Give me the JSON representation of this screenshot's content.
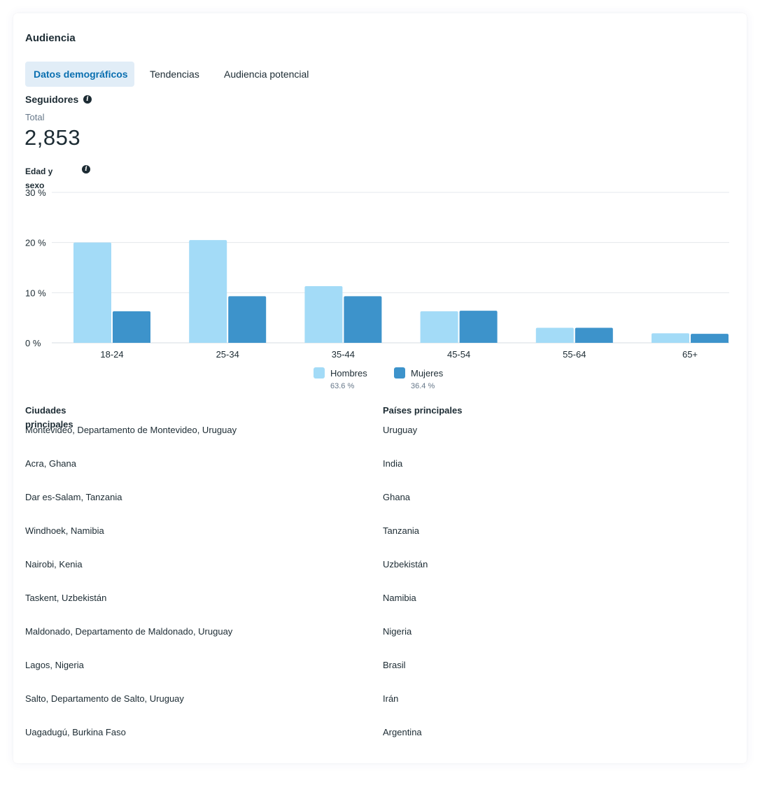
{
  "audience": {
    "title": "Audiencia",
    "tabs": [
      {
        "label": "Datos demográficos"
      },
      {
        "label": "Tendencias"
      },
      {
        "label": "Audiencia potencial"
      }
    ],
    "followers_label": "Seguidores",
    "total_label": "Total",
    "total_value": "2,853",
    "age_gender_label": "Edad y sexo"
  },
  "chart_data": {
    "type": "bar",
    "categories": [
      "18-24",
      "25-34",
      "35-44",
      "45-54",
      "55-64",
      "65+"
    ],
    "series": [
      {
        "name": "Hombres",
        "values": [
          20.0,
          20.5,
          11.3,
          6.3,
          3.0,
          1.9
        ],
        "color": "#a3dbf7"
      },
      {
        "name": "Mujeres",
        "values": [
          6.3,
          9.3,
          9.3,
          6.4,
          3.0,
          1.8
        ],
        "color": "#3d93cb"
      }
    ],
    "yticks": [
      "0 %",
      "10 %",
      "20 %",
      "30 %"
    ],
    "ylim": [
      0,
      30
    ],
    "legend": [
      {
        "name": "Hombres",
        "pct": "63.6 %"
      },
      {
        "name": "Mujeres",
        "pct": "36.4 %"
      }
    ],
    "legend_position": "bottom-center",
    "grid": true
  },
  "cities": {
    "heading": "Ciudades principales",
    "items": [
      "Montevideo, Departamento de Montevideo, Uruguay",
      "Acra, Ghana",
      "Dar es-Salam, Tanzania",
      "Windhoek, Namibia",
      "Nairobi, Kenia",
      "Taskent, Uzbekistán",
      "Maldonado, Departamento de Maldonado, Uruguay",
      "Lagos, Nigeria",
      "Salto, Departamento de Salto, Uruguay",
      "Uagadugú, Burkina Faso"
    ]
  },
  "countries": {
    "heading": "Países principales",
    "items": [
      "Uruguay",
      "India",
      "Ghana",
      "Tanzania",
      "Uzbekistán",
      "Namibia",
      "Nigeria",
      "Brasil",
      "Irán",
      "Argentina"
    ]
  },
  "icons": {
    "followers_info": "info-icon",
    "age_info": "info-icon"
  }
}
